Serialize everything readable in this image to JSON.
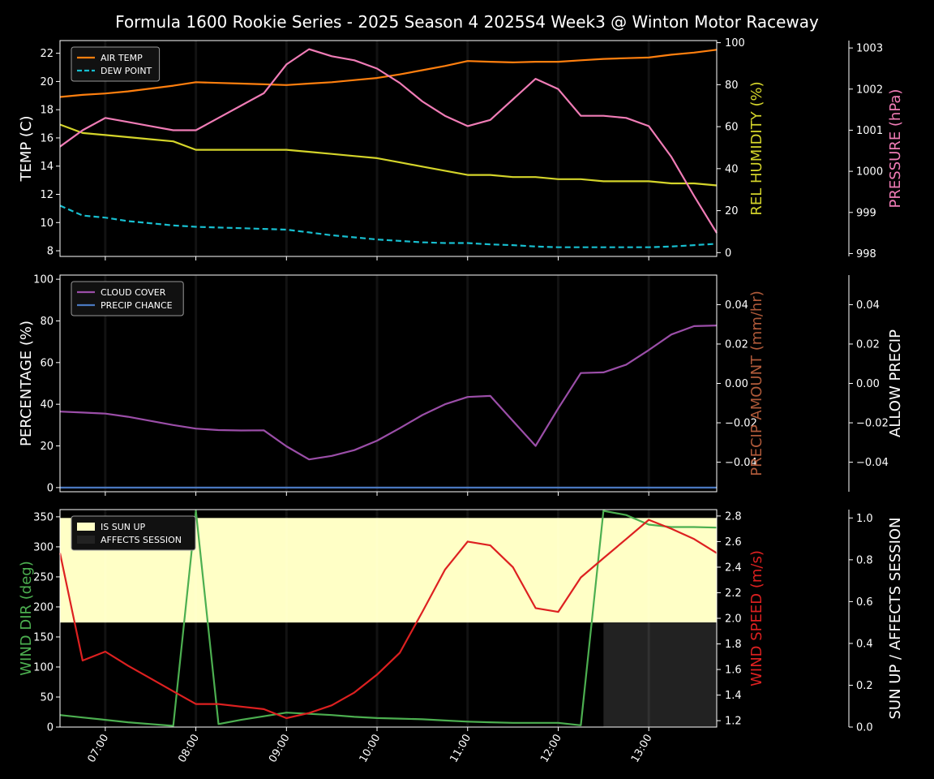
{
  "title": "Formula 1600 Rookie Series - 2025 Season 4 2025S4 Week3 @ Winton Motor Raceway",
  "colors": {
    "background": "#000000",
    "axis": "#ffffff",
    "air_temp": "#ff7f0e",
    "dew_point": "#17becf",
    "humidity": "#d4d42a",
    "pressure": "#f07cb6",
    "cloud": "#9b4ea8",
    "precip_chance": "#4a78c0",
    "precip_amount_label": "#b05a3a",
    "wind_dir": "#4caf50",
    "wind_speed": "#dd2020",
    "sun_up": "#ffffc6",
    "affects_session": "#222222"
  },
  "chart_data": [
    {
      "type": "line",
      "panel": "temperature",
      "x": [
        "06:30",
        "06:45",
        "07:00",
        "07:15",
        "07:30",
        "07:45",
        "08:00",
        "08:15",
        "08:30",
        "08:45",
        "09:00",
        "09:15",
        "09:30",
        "09:45",
        "10:00",
        "10:15",
        "10:30",
        "10:45",
        "11:00",
        "11:15",
        "11:30",
        "11:45",
        "12:00",
        "12:15",
        "12:30",
        "12:45",
        "13:00",
        "13:15",
        "13:30",
        "13:45"
      ],
      "xticks": [
        "07:00",
        "08:00",
        "09:00",
        "10:00",
        "11:00",
        "12:00",
        "13:00"
      ],
      "legend": "upper-left",
      "ylabel": "TEMP (C)",
      "ylim": [
        7.6,
        22.9
      ],
      "yticks": [
        "8",
        "10",
        "12",
        "14",
        "16",
        "18",
        "20",
        "22"
      ],
      "series": [
        {
          "name": "AIR TEMP",
          "axis": "left",
          "style": "solid",
          "values": [
            18.9,
            19.05,
            19.15,
            19.3,
            19.5,
            19.7,
            19.95,
            19.9,
            19.85,
            19.8,
            19.75,
            19.85,
            19.95,
            20.1,
            20.25,
            20.5,
            20.8,
            21.1,
            21.45,
            21.4,
            21.35,
            21.4,
            21.4,
            21.5,
            21.6,
            21.65,
            21.7,
            21.9,
            22.05,
            22.25
          ]
        },
        {
          "name": "DEW POINT",
          "axis": "left",
          "style": "dashed",
          "values": [
            11.2,
            10.5,
            10.35,
            10.1,
            9.95,
            9.8,
            9.7,
            9.65,
            9.6,
            9.55,
            9.5,
            9.3,
            9.1,
            8.95,
            8.8,
            8.7,
            8.6,
            8.55,
            8.55,
            8.45,
            8.4,
            8.3,
            8.25,
            8.25,
            8.25,
            8.25,
            8.25,
            8.3,
            8.4,
            8.5
          ]
        },
        {
          "axis": "right1",
          "style": "solid",
          "values": [
            61,
            57,
            56,
            55,
            54,
            53,
            49,
            49,
            49,
            49,
            49,
            48,
            47,
            46,
            45,
            43,
            41,
            39,
            37,
            37,
            36,
            36,
            35,
            35,
            34,
            34,
            34,
            33,
            33,
            32
          ]
        },
        {
          "axis": "right2",
          "style": "solid",
          "values": [
            1000.6,
            1001.0,
            1001.3,
            1001.2,
            1001.1,
            1001.0,
            1001.0,
            1001.3,
            1001.6,
            1001.9,
            1002.6,
            1002.97,
            1002.8,
            1002.7,
            1002.5,
            1002.15,
            1001.7,
            1001.35,
            1001.1,
            1001.25,
            1001.75,
            1002.25,
            1002.0,
            1001.35,
            1001.35,
            1001.3,
            1001.1,
            1000.35,
            999.4,
            998.5
          ]
        }
      ],
      "y2label": "REL HUMIDITY (%)",
      "y2lim": [
        -1.8,
        101
      ],
      "y2ticks": [
        "0",
        "20",
        "40",
        "60",
        "80",
        "100"
      ],
      "y3label": "PRESSURE (hPa)",
      "y3lim": [
        997.93,
        1003.18
      ],
      "y3ticks": [
        "998",
        "999",
        "1000",
        "1001",
        "1002",
        "1003"
      ]
    },
    {
      "type": "line",
      "panel": "cloud_precip",
      "legend": "upper-left",
      "ylabel": "PERCENTAGE (%)",
      "ylim": [
        -2,
        102
      ],
      "yticks": [
        "0",
        "20",
        "40",
        "60",
        "80",
        "100"
      ],
      "series": [
        {
          "name": "CLOUD COVER",
          "axis": "left",
          "style": "solid",
          "values": [
            36.5,
            36,
            35.5,
            34,
            32,
            30,
            28.3,
            27.6,
            27.4,
            27.5,
            19.8,
            13.5,
            15.2,
            18,
            22.5,
            28.5,
            34.8,
            40,
            43.5,
            44,
            32,
            20,
            38,
            55,
            55.3,
            59,
            66,
            73.5,
            77.5,
            77.8
          ]
        },
        {
          "name": "PRECIP CHANCE",
          "axis": "left",
          "style": "solid",
          "values": [
            0,
            0,
            0,
            0,
            0,
            0,
            0,
            0,
            0,
            0,
            0,
            0,
            0,
            0,
            0,
            0,
            0,
            0,
            0,
            0,
            0,
            0,
            0,
            0,
            0,
            0,
            0,
            0,
            0,
            0
          ]
        }
      ],
      "y2label": "PRECIP AMOUNT (mm/hr)",
      "y2lim": [
        -0.055,
        0.055
      ],
      "y2ticks": [
        "−0.04",
        "−0.02",
        "0.00",
        "0.02",
        "0.04"
      ],
      "y3label": "ALLOW PRECIP",
      "y3lim": [
        -0.055,
        0.055
      ],
      "y3ticks": [
        "−0.04",
        "−0.02",
        "0.00",
        "0.02",
        "0.04"
      ]
    },
    {
      "type": "line",
      "panel": "wind_sun",
      "legend": "upper-left",
      "ylabel": "WIND DIR (deg)",
      "ylim": [
        0,
        362
      ],
      "yticks": [
        "0",
        "50",
        "100",
        "150",
        "200",
        "250",
        "300",
        "350"
      ],
      "series": [
        {
          "axis": "left",
          "style": "solid",
          "values": [
            20,
            16,
            12,
            8,
            5,
            2,
            360,
            5,
            12,
            18,
            24,
            22,
            20,
            17,
            15,
            14,
            13,
            11,
            9,
            8,
            7,
            7,
            7,
            3,
            360,
            353,
            337,
            333,
            333,
            332
          ]
        },
        {
          "axis": "right1",
          "style": "solid",
          "values": [
            2.51,
            1.67,
            1.74,
            1.63,
            1.53,
            1.43,
            1.33,
            1.33,
            1.31,
            1.29,
            1.22,
            1.26,
            1.32,
            1.42,
            1.56,
            1.73,
            2.05,
            2.38,
            2.6,
            2.57,
            2.4,
            2.08,
            2.05,
            2.32,
            2.47,
            2.62,
            2.77,
            2.7,
            2.62,
            2.51
          ]
        }
      ],
      "bands": [
        {
          "name": "IS SUN UP",
          "value": 1
        },
        {
          "name": "AFFECTS SESSION",
          "from": "12:30",
          "to": "13:45",
          "value": 1
        }
      ],
      "y2label": "WIND SPEED (m/s)",
      "y2lim": [
        1.15,
        2.85
      ],
      "y2ticks": [
        "1.2",
        "1.4",
        "1.6",
        "1.8",
        "2.0",
        "2.2",
        "2.4",
        "2.6",
        "2.8"
      ],
      "y3label": "SUN UP / AFFECTS SESSION",
      "y3lim": [
        0,
        1.04
      ],
      "y3ticks": [
        "0.0",
        "0.2",
        "0.4",
        "0.6",
        "0.8",
        "1.0"
      ]
    }
  ]
}
